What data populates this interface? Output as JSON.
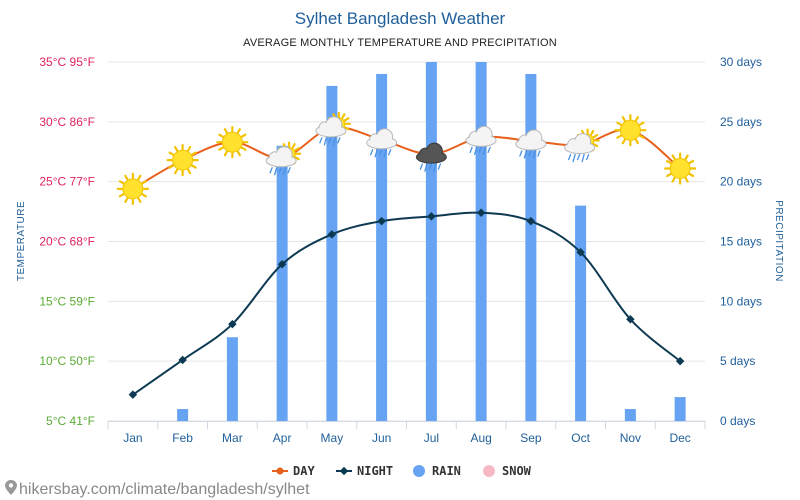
{
  "header": {
    "title": "Sylhet Bangladesh Weather",
    "subtitle": "AVERAGE MONTHLY TEMPERATURE AND PRECIPITATION"
  },
  "chart_data": {
    "type": "bar",
    "categories": [
      "Jan",
      "Feb",
      "Mar",
      "Apr",
      "May",
      "Jun",
      "Jul",
      "Aug",
      "Sep",
      "Oct",
      "Nov",
      "Dec"
    ],
    "series": [
      {
        "name": "DAY",
        "type": "line",
        "axis": "left",
        "unit": "°C",
        "color": "#e8601c",
        "values": [
          24.4,
          26.8,
          28.3,
          27,
          29.5,
          28.5,
          27.3,
          28.7,
          28.4,
          28.1,
          29.3,
          26.1
        ]
      },
      {
        "name": "NIGHT",
        "type": "line",
        "axis": "left",
        "unit": "°C",
        "color": "#0d3a52",
        "values": [
          7.2,
          10.1,
          13.1,
          18.1,
          20.6,
          21.7,
          22.1,
          22.4,
          21.7,
          19.1,
          13.5,
          10.0
        ]
      },
      {
        "name": "RAIN",
        "type": "bar",
        "axis": "right",
        "unit": "days",
        "color": "#66a3f2",
        "values": [
          0,
          1,
          7,
          23,
          28,
          29,
          30,
          30,
          29,
          18,
          1,
          2
        ]
      },
      {
        "name": "SNOW",
        "type": "bar",
        "axis": "right",
        "unit": "days",
        "color": "#f7b8c6",
        "values": [
          0,
          0,
          0,
          0,
          0,
          0,
          0,
          0,
          0,
          0,
          0,
          0
        ]
      }
    ],
    "y_left": {
      "label": "TEMPERATURE",
      "range": [
        5,
        35
      ],
      "ticks": [
        {
          "v": 35,
          "label": "35°C 95°F",
          "color": "#e0245e"
        },
        {
          "v": 30,
          "label": "30°C 86°F",
          "color": "#e0245e"
        },
        {
          "v": 25,
          "label": "25°C 77°F",
          "color": "#e0245e"
        },
        {
          "v": 20,
          "label": "20°C 68°F",
          "color": "#e0245e"
        },
        {
          "v": 15,
          "label": "15°C 59°F",
          "color": "#5aab33"
        },
        {
          "v": 10,
          "label": "10°C 50°F",
          "color": "#5aab33"
        },
        {
          "v": 5,
          "label": "5°C 41°F",
          "color": "#5aab33"
        }
      ]
    },
    "y_right": {
      "label": "PRECIPITATION",
      "range": [
        0,
        30
      ],
      "ticks": [
        {
          "v": 30,
          "label": "30 days"
        },
        {
          "v": 25,
          "label": "25 days"
        },
        {
          "v": 20,
          "label": "20 days"
        },
        {
          "v": 15,
          "label": "15 days"
        },
        {
          "v": 10,
          "label": "10 days"
        },
        {
          "v": 5,
          "label": "5 days"
        },
        {
          "v": 0,
          "label": "0 days"
        }
      ]
    },
    "weather_icons": [
      "sun",
      "sun",
      "sun",
      "sun-cloud-rain",
      "sun-cloud-rain",
      "cloud-rain",
      "storm-cloud",
      "cloud-rain",
      "cloud-rain",
      "sun-cloud-rain",
      "sun",
      "sun"
    ],
    "grid": true,
    "legend": {
      "position": "bottom"
    }
  },
  "footer": {
    "source": "hikersbay.com/climate/bangladesh/sylhet",
    "pin_icon": "map-pin-icon"
  }
}
